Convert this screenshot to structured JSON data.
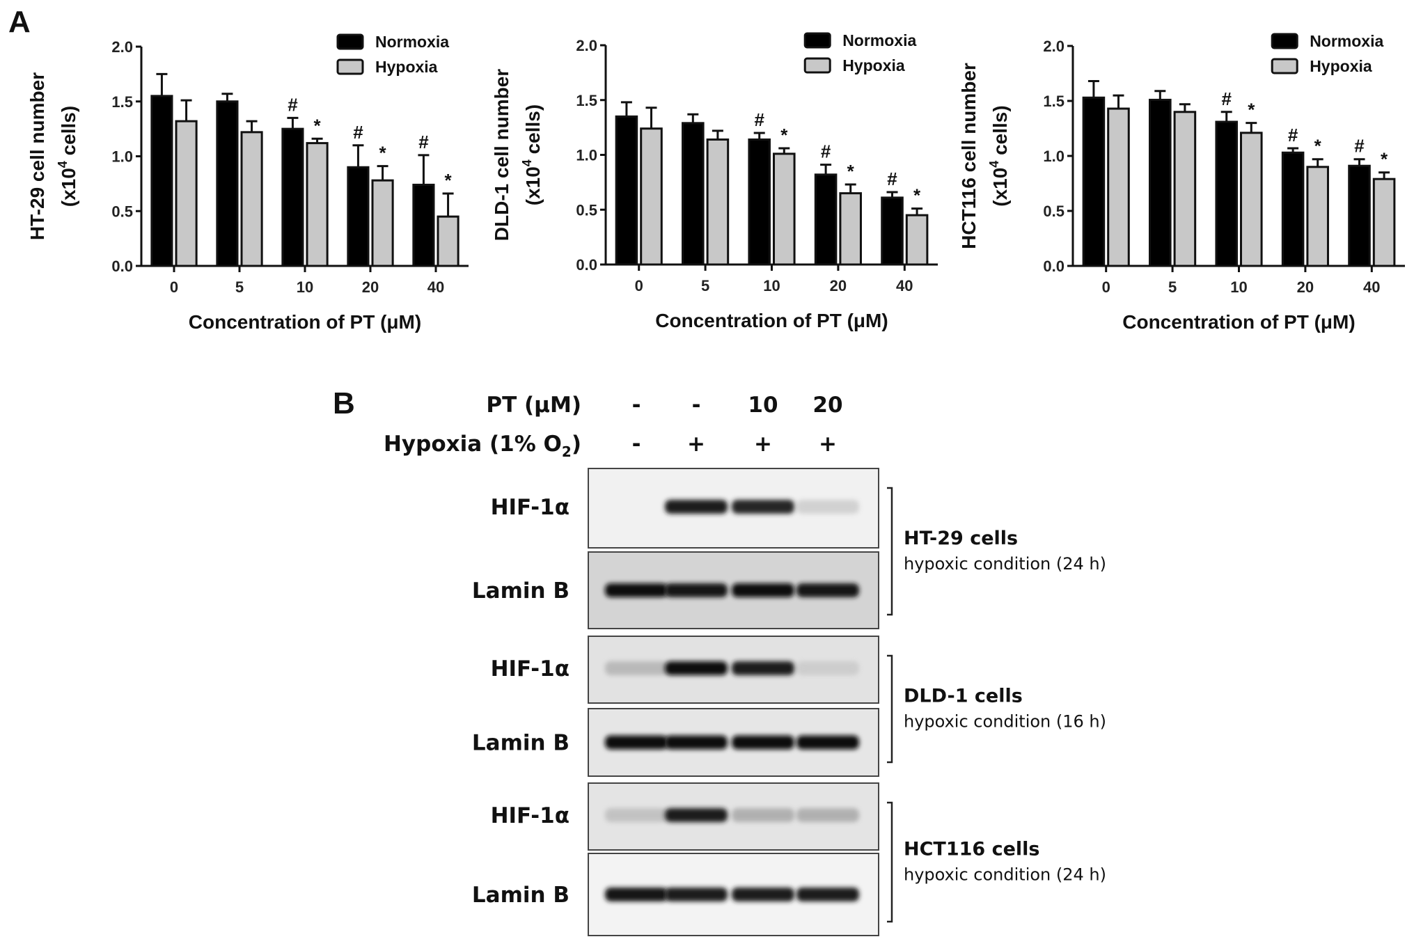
{
  "panels": {
    "a": "A",
    "b": "B"
  },
  "chart_data": [
    {
      "type": "bar",
      "ylabel_line1": "HT-29 cell number",
      "ylabel_line2_prefix": "(x10",
      "ylabel_line2_sup": "4",
      "ylabel_line2_suffix": " cells)",
      "xlabel": "Concentration of PT (μM)",
      "categories": [
        "0",
        "5",
        "10",
        "20",
        "40"
      ],
      "ylim": [
        0,
        2.0
      ],
      "yticks": [
        "0.0",
        "0.5",
        "1.0",
        "1.5",
        "2.0"
      ],
      "legend_position": "top-right",
      "series": [
        {
          "name": "Normoxia",
          "color": "#000000",
          "values": [
            1.55,
            1.5,
            1.25,
            0.9,
            0.74
          ],
          "errors": [
            0.2,
            0.07,
            0.1,
            0.2,
            0.27
          ],
          "marks": [
            "",
            "",
            "#",
            "#",
            "#"
          ]
        },
        {
          "name": "Hypoxia",
          "color": "#c8c8c8",
          "values": [
            1.32,
            1.22,
            1.12,
            0.78,
            0.45
          ],
          "errors": [
            0.19,
            0.1,
            0.04,
            0.13,
            0.21
          ],
          "marks": [
            "",
            "",
            "*",
            "*",
            "*"
          ]
        }
      ]
    },
    {
      "type": "bar",
      "ylabel_line1": "DLD-1 cell number",
      "ylabel_line2_prefix": "(x10",
      "ylabel_line2_sup": "4",
      "ylabel_line2_suffix": " cells)",
      "xlabel": "Concentration of PT (μM)",
      "categories": [
        "0",
        "5",
        "10",
        "20",
        "40"
      ],
      "ylim": [
        0,
        2.0
      ],
      "yticks": [
        "0.0",
        "0.5",
        "1.0",
        "1.5",
        "2.0"
      ],
      "legend_position": "top-right",
      "series": [
        {
          "name": "Normoxia",
          "color": "#000000",
          "values": [
            1.35,
            1.29,
            1.14,
            0.82,
            0.61
          ],
          "errors": [
            0.13,
            0.08,
            0.06,
            0.09,
            0.05
          ],
          "marks": [
            "",
            "",
            "#",
            "#",
            "#"
          ]
        },
        {
          "name": "Hypoxia",
          "color": "#c8c8c8",
          "values": [
            1.24,
            1.14,
            1.01,
            0.65,
            0.45
          ],
          "errors": [
            0.19,
            0.08,
            0.05,
            0.08,
            0.06
          ],
          "marks": [
            "",
            "",
            "*",
            "*",
            "*"
          ]
        }
      ]
    },
    {
      "type": "bar",
      "ylabel_line1": "HCT116 cell number",
      "ylabel_line2_prefix": "(x10",
      "ylabel_line2_sup": "4",
      "ylabel_line2_suffix": " cells)",
      "xlabel": "Concentration of PT (μM)",
      "categories": [
        "0",
        "5",
        "10",
        "20",
        "40"
      ],
      "ylim": [
        0,
        2.0
      ],
      "yticks": [
        "0.0",
        "0.5",
        "1.0",
        "1.5",
        "2.0"
      ],
      "legend_position": "top-right",
      "series": [
        {
          "name": "Normoxia",
          "color": "#000000",
          "values": [
            1.53,
            1.51,
            1.31,
            1.03,
            0.91
          ],
          "errors": [
            0.15,
            0.08,
            0.09,
            0.04,
            0.06
          ],
          "marks": [
            "",
            "",
            "#",
            "#",
            "#"
          ]
        },
        {
          "name": "Hypoxia",
          "color": "#c8c8c8",
          "values": [
            1.43,
            1.4,
            1.21,
            0.9,
            0.79
          ],
          "errors": [
            0.12,
            0.07,
            0.09,
            0.07,
            0.06
          ],
          "marks": [
            "",
            "",
            "*",
            "*",
            "*"
          ]
        }
      ]
    }
  ],
  "blot": {
    "rows": [
      {
        "label": "PT (μM)",
        "values": [
          "-",
          "-",
          "10",
          "20"
        ]
      },
      {
        "label_prefix": "Hypoxia (1% O",
        "label_sub": "2",
        "label_suffix": ")",
        "values": [
          "-",
          "+",
          "+",
          "+"
        ]
      }
    ],
    "groups": [
      {
        "cell": "HT-29  cells",
        "condition": "hypoxic condition  (24 h)",
        "bands": [
          {
            "label": "HIF-1α",
            "intensity": [
              0.0,
              0.9,
              0.85,
              0.15
            ]
          },
          {
            "label": "Lamin B",
            "intensity": [
              1.0,
              0.95,
              1.0,
              0.95
            ]
          }
        ]
      },
      {
        "cell": "DLD-1 cells",
        "condition": "hypoxic condition  (16 h)",
        "bands": [
          {
            "label": "HIF-1α",
            "intensity": [
              0.25,
              1.0,
              0.9,
              0.12
            ]
          },
          {
            "label": "Lamin B",
            "intensity": [
              1.0,
              1.0,
              1.0,
              1.0
            ]
          }
        ]
      },
      {
        "cell": "HCT116  cells",
        "condition": "hypoxic condition  (24 h)",
        "bands": [
          {
            "label": "HIF-1α",
            "intensity": [
              0.2,
              0.9,
              0.3,
              0.3
            ]
          },
          {
            "label": "Lamin B",
            "intensity": [
              0.95,
              0.9,
              0.9,
              0.9
            ]
          }
        ]
      }
    ]
  }
}
